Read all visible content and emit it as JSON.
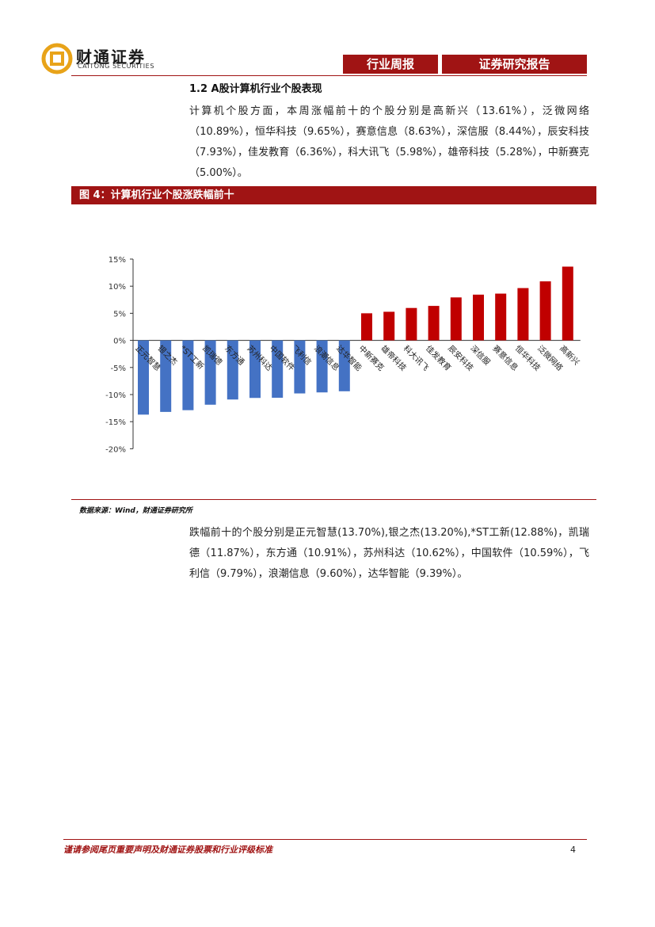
{
  "header": {
    "logo_name": "财通证券",
    "logo_sub": "CAITONG SECURITIES",
    "tab1": "行业周报",
    "tab2": "证券研究报告"
  },
  "section": {
    "title": "1.2  A股计算机行业个股表现",
    "para1": "计算机个股方面，本周涨幅前十的个股分别是高新兴（13.61%），泛微网络（10.89%），恒华科技（9.65%），赛意信息（8.63%），深信服（8.44%），辰安科技（7.93%），佳发教育（6.36%），科大讯飞（5.98%），雄帝科技（5.28%），中新赛克（5.00%）。",
    "para2": "跌幅前十的个股分别是正元智慧(13.70%),银之杰(13.20%),*ST工新(12.88%)，凯瑞德（11.87%），东方通（10.91%），苏州科达（10.62%），中国软件（10.59%），飞利信（9.79%），浪潮信息（9.60%），达华智能（9.39%）。"
  },
  "figure": {
    "title": "图 4：计算机行业个股涨跌幅前十",
    "source": "数据来源：Wind，财通证券研究所"
  },
  "chart_data": {
    "type": "bar",
    "categories": [
      "正元智慧",
      "银之杰",
      "*ST工新",
      "凯瑞德",
      "东方通",
      "苏州科达",
      "中国软件",
      "飞利信",
      "浪潮信息",
      "达华智能",
      "中新赛克",
      "雄帝科技",
      "科大讯飞",
      "佳发教育",
      "辰安科技",
      "深信服",
      "赛意信息",
      "恒华科技",
      "泛微网络",
      "高新兴"
    ],
    "values": [
      -13.7,
      -13.2,
      -12.88,
      -11.87,
      -10.91,
      -10.62,
      -10.59,
      -9.79,
      -9.6,
      -9.39,
      5.0,
      5.28,
      5.98,
      6.36,
      7.93,
      8.44,
      8.63,
      9.65,
      10.89,
      13.61
    ],
    "yticks": [
      "15%",
      "10%",
      "5%",
      "0%",
      "-5%",
      "-10%",
      "-15%",
      "-20%"
    ],
    "ylim": [
      -20,
      15
    ],
    "colors": {
      "negative": "#4472c4",
      "positive": "#c00000"
    }
  },
  "footer": {
    "disclaimer": "谨请参阅尾页重要声明及财通证券股票和行业评级标准",
    "page": "4"
  }
}
